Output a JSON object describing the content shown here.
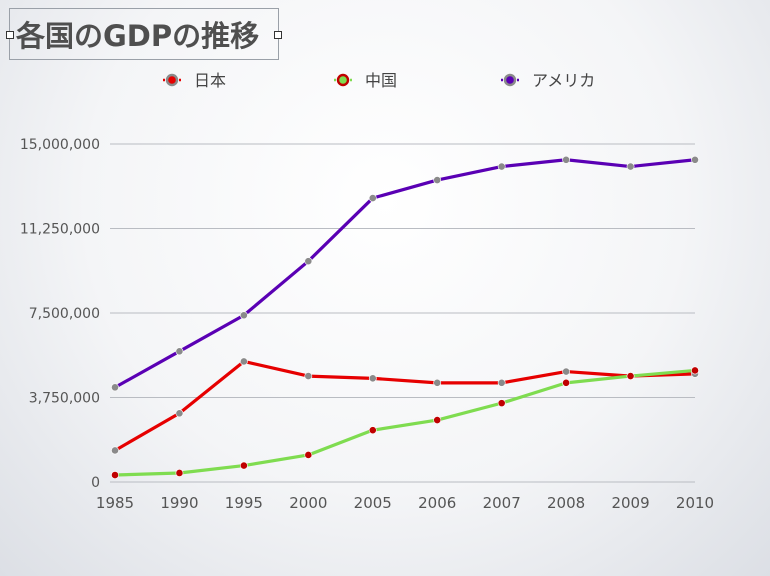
{
  "title": "各国のGDPの推移",
  "colors": {
    "japan": "#e60000",
    "china": "#7fdc50",
    "usa": "#5a00b4",
    "grid": "#b9bcc2",
    "text": "#555555",
    "marker_gray": "#8a8a8a",
    "marker_red": "#c00000"
  },
  "chart_data": {
    "type": "line",
    "title": "各国のGDPの推移",
    "categories": [
      "1985",
      "1990",
      "1995",
      "2000",
      "2005",
      "2006",
      "2007",
      "2008",
      "2009",
      "2010"
    ],
    "ylim": [
      0,
      15000000
    ],
    "yticks": [
      "0",
      "3,750,000",
      "7,500,000",
      "11,250,000",
      "15,000,000"
    ],
    "ytick_values": [
      0,
      3750000,
      7500000,
      11250000,
      15000000
    ],
    "grid": true,
    "legend_position": "top",
    "series": [
      {
        "name": "日本",
        "color": "#e60000",
        "marker": "#8a8a8a",
        "values": [
          1400000,
          3050000,
          5350000,
          4700000,
          4600000,
          4400000,
          4400000,
          4900000,
          4700000,
          4800000
        ]
      },
      {
        "name": "中国",
        "color": "#7fdc50",
        "marker": "#c00000",
        "values": [
          310000,
          400000,
          730000,
          1200000,
          2300000,
          2750000,
          3500000,
          4400000,
          4700000,
          4950000
        ]
      },
      {
        "name": "アメリカ",
        "color": "#5a00b4",
        "marker": "#8a8a8a",
        "values": [
          4200000,
          5800000,
          7400000,
          9800000,
          12600000,
          13400000,
          14000000,
          14300000,
          14000000,
          14300000
        ]
      }
    ]
  }
}
